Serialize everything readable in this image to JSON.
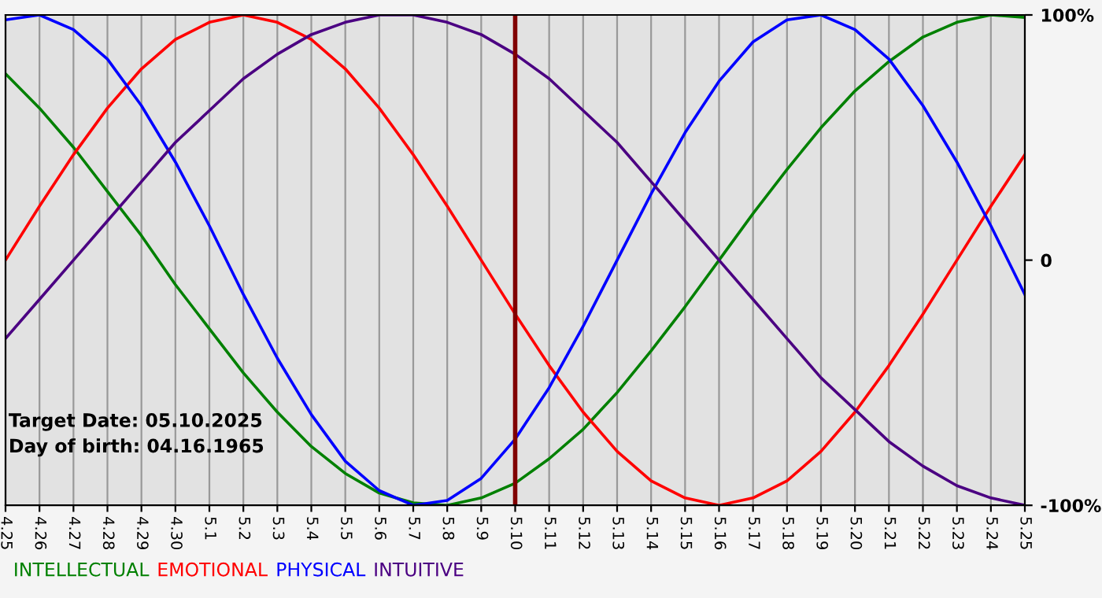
{
  "chart_data": {
    "type": "line",
    "categories": [
      "4.25",
      "4.26",
      "4.27",
      "4.28",
      "4.29",
      "4.30",
      "5.1",
      "5.2",
      "5.3",
      "5.4",
      "5.5",
      "5.6",
      "5.7",
      "5.8",
      "5.9",
      "5.10",
      "5.11",
      "5.12",
      "5.13",
      "5.14",
      "5.15",
      "5.16",
      "5.17",
      "5.18",
      "5.19",
      "5.20",
      "5.21",
      "5.22",
      "5.23",
      "5.24",
      "5.25"
    ],
    "series": [
      {
        "name": "INTELLECTUAL",
        "color": "#008000",
        "values": [
          76,
          62,
          46,
          28,
          10,
          -10,
          -28,
          -46,
          -62,
          -76,
          -87,
          -95,
          -99,
          -100,
          -97,
          -91,
          -81,
          -69,
          -54,
          -37,
          -19,
          0,
          19,
          37,
          54,
          69,
          81,
          91,
          97,
          100,
          99
        ]
      },
      {
        "name": "EMOTIONAL",
        "color": "#ff0000",
        "values": [
          0,
          22,
          43,
          62,
          78,
          90,
          97,
          100,
          97,
          90,
          78,
          62,
          43,
          22,
          0,
          -22,
          -43,
          -62,
          -78,
          -90,
          -97,
          -100,
          -97,
          -90,
          -78,
          -62,
          -43,
          -22,
          0,
          22,
          43
        ]
      },
      {
        "name": "PHYSICAL",
        "color": "#0000ff",
        "values": [
          98,
          100,
          94,
          82,
          63,
          40,
          14,
          -14,
          -40,
          -63,
          -82,
          -94,
          -100,
          -98,
          -89,
          -73,
          -52,
          -27,
          0,
          27,
          52,
          73,
          89,
          98,
          100,
          94,
          82,
          63,
          40,
          14,
          -14
        ]
      },
      {
        "name": "INTUITIVE",
        "color": "#4b0082",
        "values": [
          -32,
          -16,
          0,
          16,
          32,
          48,
          61,
          74,
          84,
          92,
          97,
          100,
          100,
          97,
          92,
          84,
          74,
          61,
          48,
          32,
          16,
          0,
          -16,
          -32,
          -48,
          -61,
          -74,
          -84,
          -92,
          -97,
          -100
        ]
      }
    ],
    "ylim": [
      -100,
      100
    ],
    "yticks": [
      {
        "value": 100,
        "label": "100%"
      },
      0,
      {
        "value": -100,
        "label": "-100%"
      }
    ],
    "ref_lines": [
      {
        "axis": "x",
        "value": "5.10",
        "color": "#800000"
      }
    ],
    "annotations": [
      "Target Date: 05.10.2025",
      "Day of birth: 04.16.1965"
    ],
    "grid": "x",
    "legend": "bottom",
    "line_style": "solid"
  }
}
